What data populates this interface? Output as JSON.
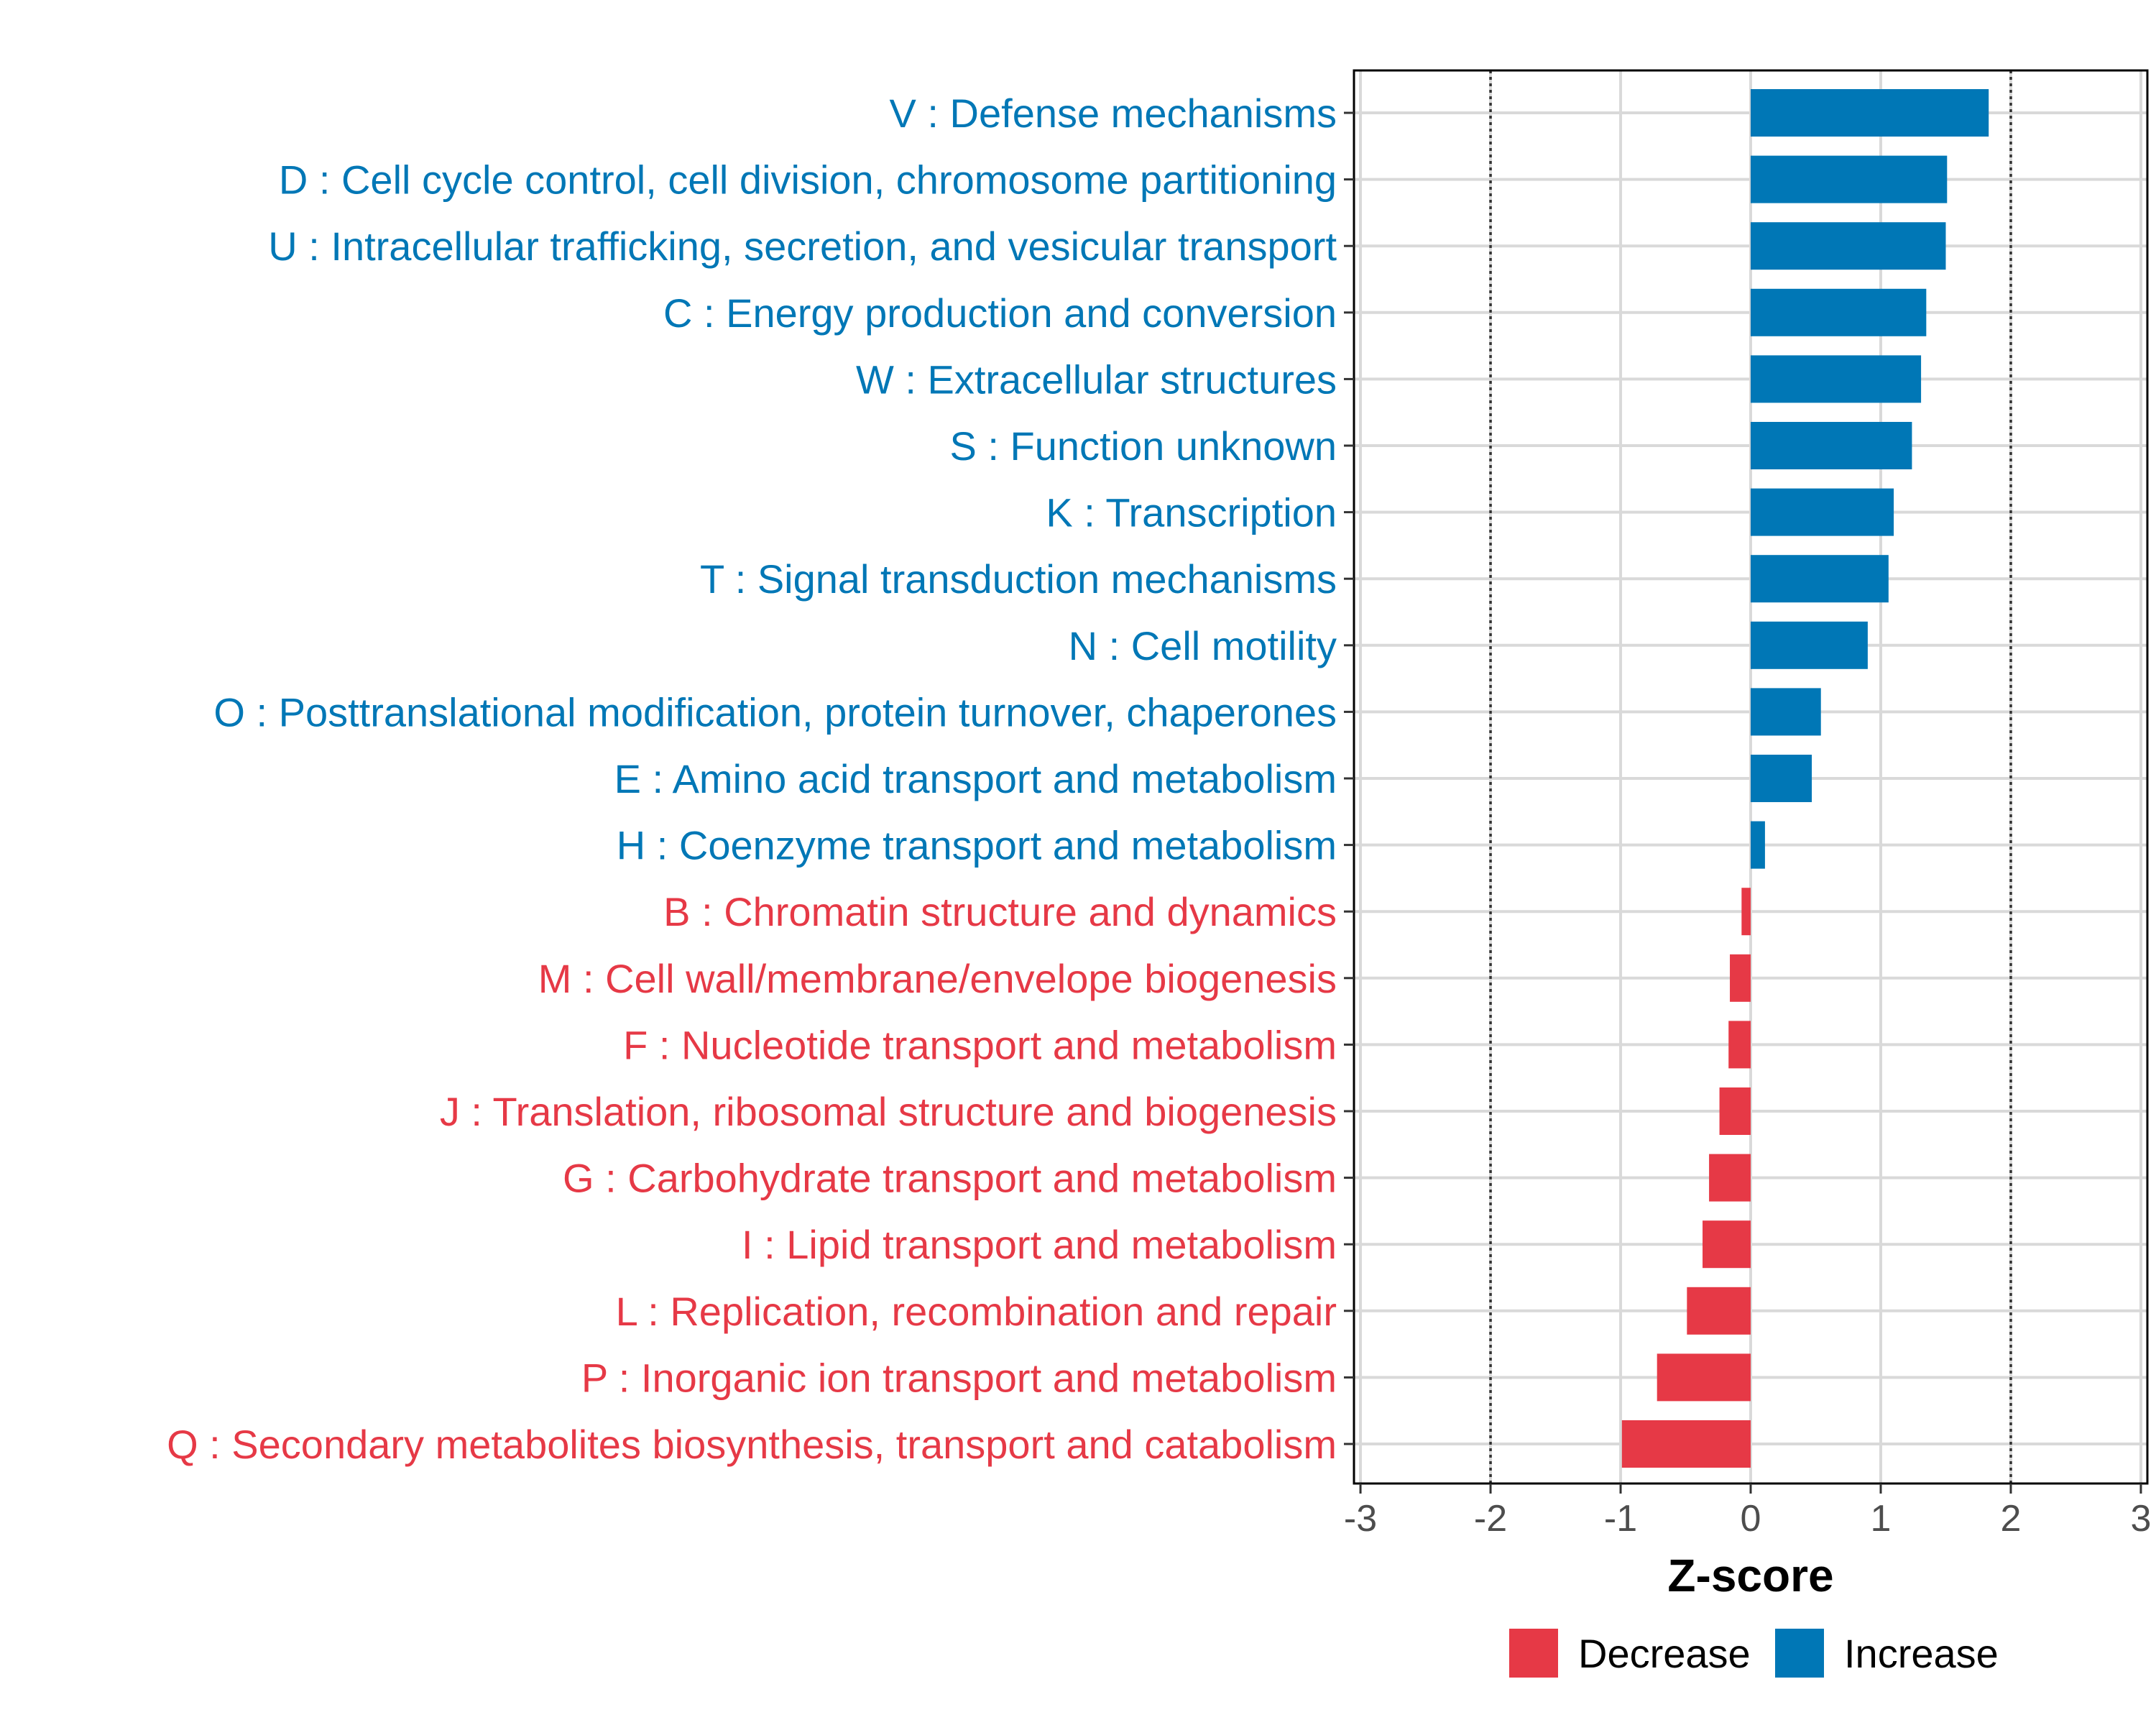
{
  "chart_data": {
    "type": "bar",
    "orientation": "horizontal",
    "title": "",
    "xlabel": "Z-score",
    "ylabel": "",
    "xlim": [
      -3.05,
      3.05
    ],
    "xticks": [
      -3,
      -2,
      -1,
      0,
      1,
      2,
      3
    ],
    "xtick_labels": [
      "-3",
      "-2",
      "-1",
      "0",
      "1",
      "2",
      "3"
    ],
    "reference_lines": [
      -2,
      2
    ],
    "grid": true,
    "categories": [
      "V : Defense mechanisms",
      "D : Cell cycle control, cell division, chromosome partitioning",
      "U : Intracellular trafficking, secretion, and vesicular transport",
      "C : Energy production and conversion",
      "W : Extracellular structures",
      "S : Function unknown",
      "K : Transcription",
      "T : Signal transduction mechanisms",
      "N : Cell motility",
      "O : Posttranslational modification, protein turnover, chaperones",
      "E : Amino acid transport and metabolism",
      "H : Coenzyme transport and metabolism",
      "B : Chromatin structure and dynamics",
      "M : Cell wall/membrane/envelope biogenesis",
      "F : Nucleotide transport and metabolism",
      "J : Translation, ribosomal structure and biogenesis",
      "G : Carbohydrate transport and metabolism",
      "I : Lipid transport and metabolism",
      "L : Replication, recombination and repair",
      "P : Inorganic ion transport and metabolism",
      "Q : Secondary metabolites biosynthesis, transport and catabolism"
    ],
    "values": [
      1.83,
      1.51,
      1.5,
      1.35,
      1.31,
      1.24,
      1.1,
      1.06,
      0.9,
      0.54,
      0.47,
      0.11,
      -0.07,
      -0.16,
      -0.17,
      -0.24,
      -0.32,
      -0.37,
      -0.49,
      -0.72,
      -0.99
    ],
    "legend": {
      "placement": "bottom",
      "entries": [
        {
          "name": "Decrease",
          "color": "#e63946"
        },
        {
          "name": "Increase",
          "color": "#0077b6"
        }
      ]
    }
  },
  "colors": {
    "increase": "#0077b6",
    "decrease": "#e63946",
    "grid": "#d9d9d9",
    "axis": "#000000"
  }
}
